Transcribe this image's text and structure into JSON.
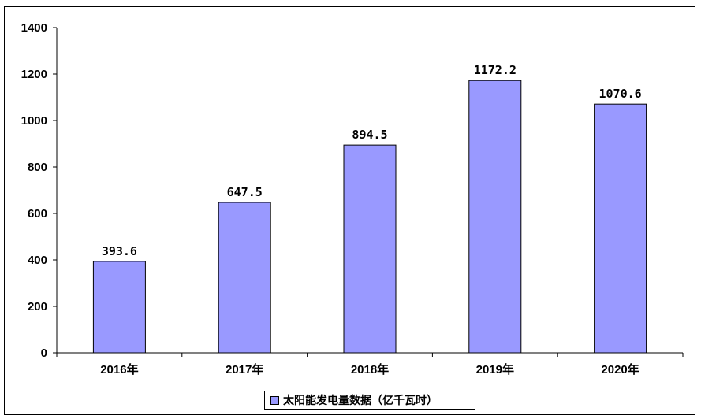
{
  "chart_data": {
    "type": "bar",
    "categories": [
      "2016年",
      "2017年",
      "2018年",
      "2019年",
      "2020年"
    ],
    "series": [
      {
        "name": "太阳能发电量数据（亿千瓦时）",
        "values": [
          393.6,
          647.5,
          894.5,
          1172.2,
          1070.6
        ],
        "data_labels": [
          "393.6",
          "647.5",
          "894.5",
          "1172.2",
          "1070.6"
        ],
        "color": "#9999ff"
      }
    ],
    "yticks": [
      "0",
      "200",
      "400",
      "600",
      "800",
      "1000",
      "1200",
      "1400"
    ],
    "ylim": [
      0,
      1400
    ],
    "grid": false,
    "legend_position": "bottom"
  }
}
